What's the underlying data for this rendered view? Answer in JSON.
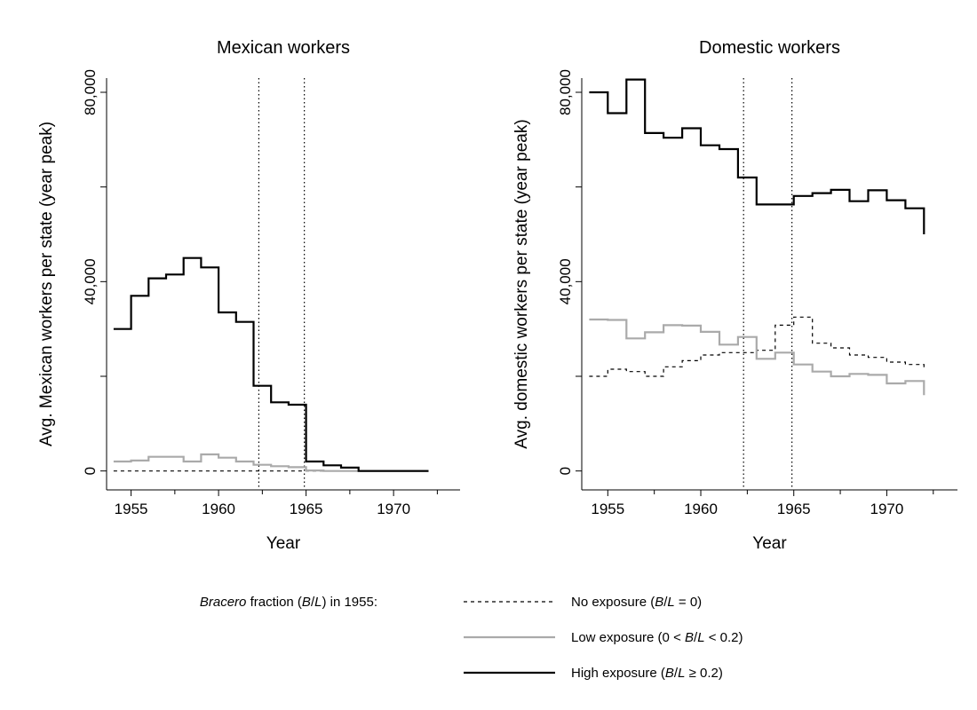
{
  "chart_data": [
    {
      "type": "line",
      "title": "Mexican workers",
      "xlabel": "Year",
      "ylabel": "Avg. Mexican workers per state (year peak)",
      "xlim": [
        1953.6,
        1973.8
      ],
      "ylim": [
        -4000,
        83000
      ],
      "x_ticks": [
        1955,
        1960,
        1965,
        1970
      ],
      "y_ticks_labeled": [
        0,
        40000,
        80000
      ],
      "y_tick_labels": [
        "0",
        "40,000",
        "80,000"
      ],
      "y_ticks_minor": [
        20000,
        60000
      ],
      "x_ticks_minor": [
        1957.5,
        1962.5,
        1967.5,
        1972.5
      ],
      "vertical_lines": [
        1962.3,
        1964.9
      ],
      "step": true,
      "series": [
        {
          "key": "none",
          "x": [
            1954,
            1955,
            1956,
            1957,
            1958,
            1959,
            1960,
            1961,
            1962,
            1963,
            1964,
            1965,
            1966,
            1967,
            1968,
            1969,
            1970,
            1971,
            1972
          ],
          "y": [
            0,
            0,
            0,
            0,
            0,
            0,
            0,
            0,
            0,
            0,
            0,
            0,
            0,
            0,
            0,
            0,
            0,
            0,
            0
          ]
        },
        {
          "key": "low",
          "x": [
            1954,
            1955,
            1956,
            1957,
            1958,
            1959,
            1960,
            1961,
            1962,
            1963,
            1964,
            1965,
            1966,
            1967,
            1968,
            1969,
            1970,
            1971,
            1972
          ],
          "y": [
            2000,
            2200,
            3000,
            3000,
            2000,
            3500,
            2800,
            2000,
            1300,
            1000,
            800,
            100,
            0,
            0,
            0,
            0,
            0,
            0,
            0
          ]
        },
        {
          "key": "high",
          "x": [
            1954,
            1955,
            1956,
            1957,
            1958,
            1959,
            1960,
            1961,
            1962,
            1963,
            1964,
            1965,
            1966,
            1967,
            1968,
            1969,
            1970,
            1971,
            1972
          ],
          "y": [
            30000,
            37000,
            40700,
            41500,
            45000,
            43000,
            33500,
            31500,
            18000,
            14500,
            14000,
            2000,
            1200,
            700,
            0,
            0,
            0,
            0,
            0
          ]
        }
      ]
    },
    {
      "type": "line",
      "title": "Domestic workers",
      "xlabel": "Year",
      "ylabel": "Avg. domestic workers per state (year peak)",
      "xlim": [
        1953.6,
        1973.8
      ],
      "ylim": [
        -4000,
        83000
      ],
      "x_ticks": [
        1955,
        1960,
        1965,
        1970
      ],
      "y_ticks_labeled": [
        0,
        40000,
        80000
      ],
      "y_tick_labels": [
        "0",
        "40,000",
        "80,000"
      ],
      "y_ticks_minor": [
        20000,
        60000
      ],
      "x_ticks_minor": [
        1957.5,
        1962.5,
        1967.5,
        1972.5
      ],
      "vertical_lines": [
        1962.3,
        1964.9
      ],
      "step": true,
      "series": [
        {
          "key": "none",
          "x": [
            1954,
            1955,
            1956,
            1957,
            1958,
            1959,
            1960,
            1961,
            1962,
            1963,
            1964,
            1965,
            1966,
            1967,
            1968,
            1969,
            1970,
            1971,
            1972
          ],
          "y": [
            20000,
            21500,
            21000,
            20000,
            22000,
            23300,
            24500,
            25000,
            25000,
            25500,
            30800,
            32500,
            27000,
            26000,
            24500,
            24000,
            23000,
            22500,
            21500
          ]
        },
        {
          "key": "low",
          "x": [
            1954,
            1955,
            1956,
            1957,
            1958,
            1959,
            1960,
            1961,
            1962,
            1963,
            1964,
            1965,
            1966,
            1967,
            1968,
            1969,
            1970,
            1971,
            1972
          ],
          "y": [
            32000,
            31900,
            28000,
            29300,
            30800,
            30700,
            29400,
            26700,
            28300,
            23700,
            25000,
            22500,
            21000,
            20000,
            20500,
            20300,
            18500,
            19000,
            16000
          ]
        },
        {
          "key": "high",
          "x": [
            1954,
            1955,
            1956,
            1957,
            1958,
            1959,
            1960,
            1961,
            1962,
            1963,
            1964,
            1965,
            1966,
            1967,
            1968,
            1969,
            1970,
            1971,
            1972
          ],
          "y": [
            80000,
            75600,
            82700,
            71400,
            70400,
            72400,
            68800,
            68000,
            62000,
            56300,
            56300,
            58100,
            58700,
            59400,
            57000,
            59300,
            57200,
            55500,
            50000
          ]
        }
      ]
    }
  ],
  "legend": {
    "prefix": "fraction (",
    "prefix_italic": "Bracero",
    "prefix_var": "B",
    "prefix_slash": "/",
    "prefix_var2": "L",
    "prefix_suffix": ") in 1955:",
    "entries": [
      {
        "key": "none",
        "text": "No exposure (",
        "var": "B",
        "slash": "/",
        "var2": "L",
        "tail": " = 0)"
      },
      {
        "key": "low",
        "text": "Low exposure (0 < ",
        "var": "B",
        "slash": "/",
        "var2": "L",
        "tail": " < 0.2)"
      },
      {
        "key": "high",
        "text": "High exposure (",
        "var": "B",
        "slash": "/",
        "var2": "L",
        "tail": " ≥ 0.2)"
      }
    ]
  },
  "styles": {
    "none": {
      "color": "#000000",
      "width": 1.2,
      "dash": "4 4"
    },
    "low": {
      "color": "#aaaaaa",
      "width": 2.2,
      "dash": ""
    },
    "high": {
      "color": "#000000",
      "width": 2.2,
      "dash": ""
    }
  }
}
